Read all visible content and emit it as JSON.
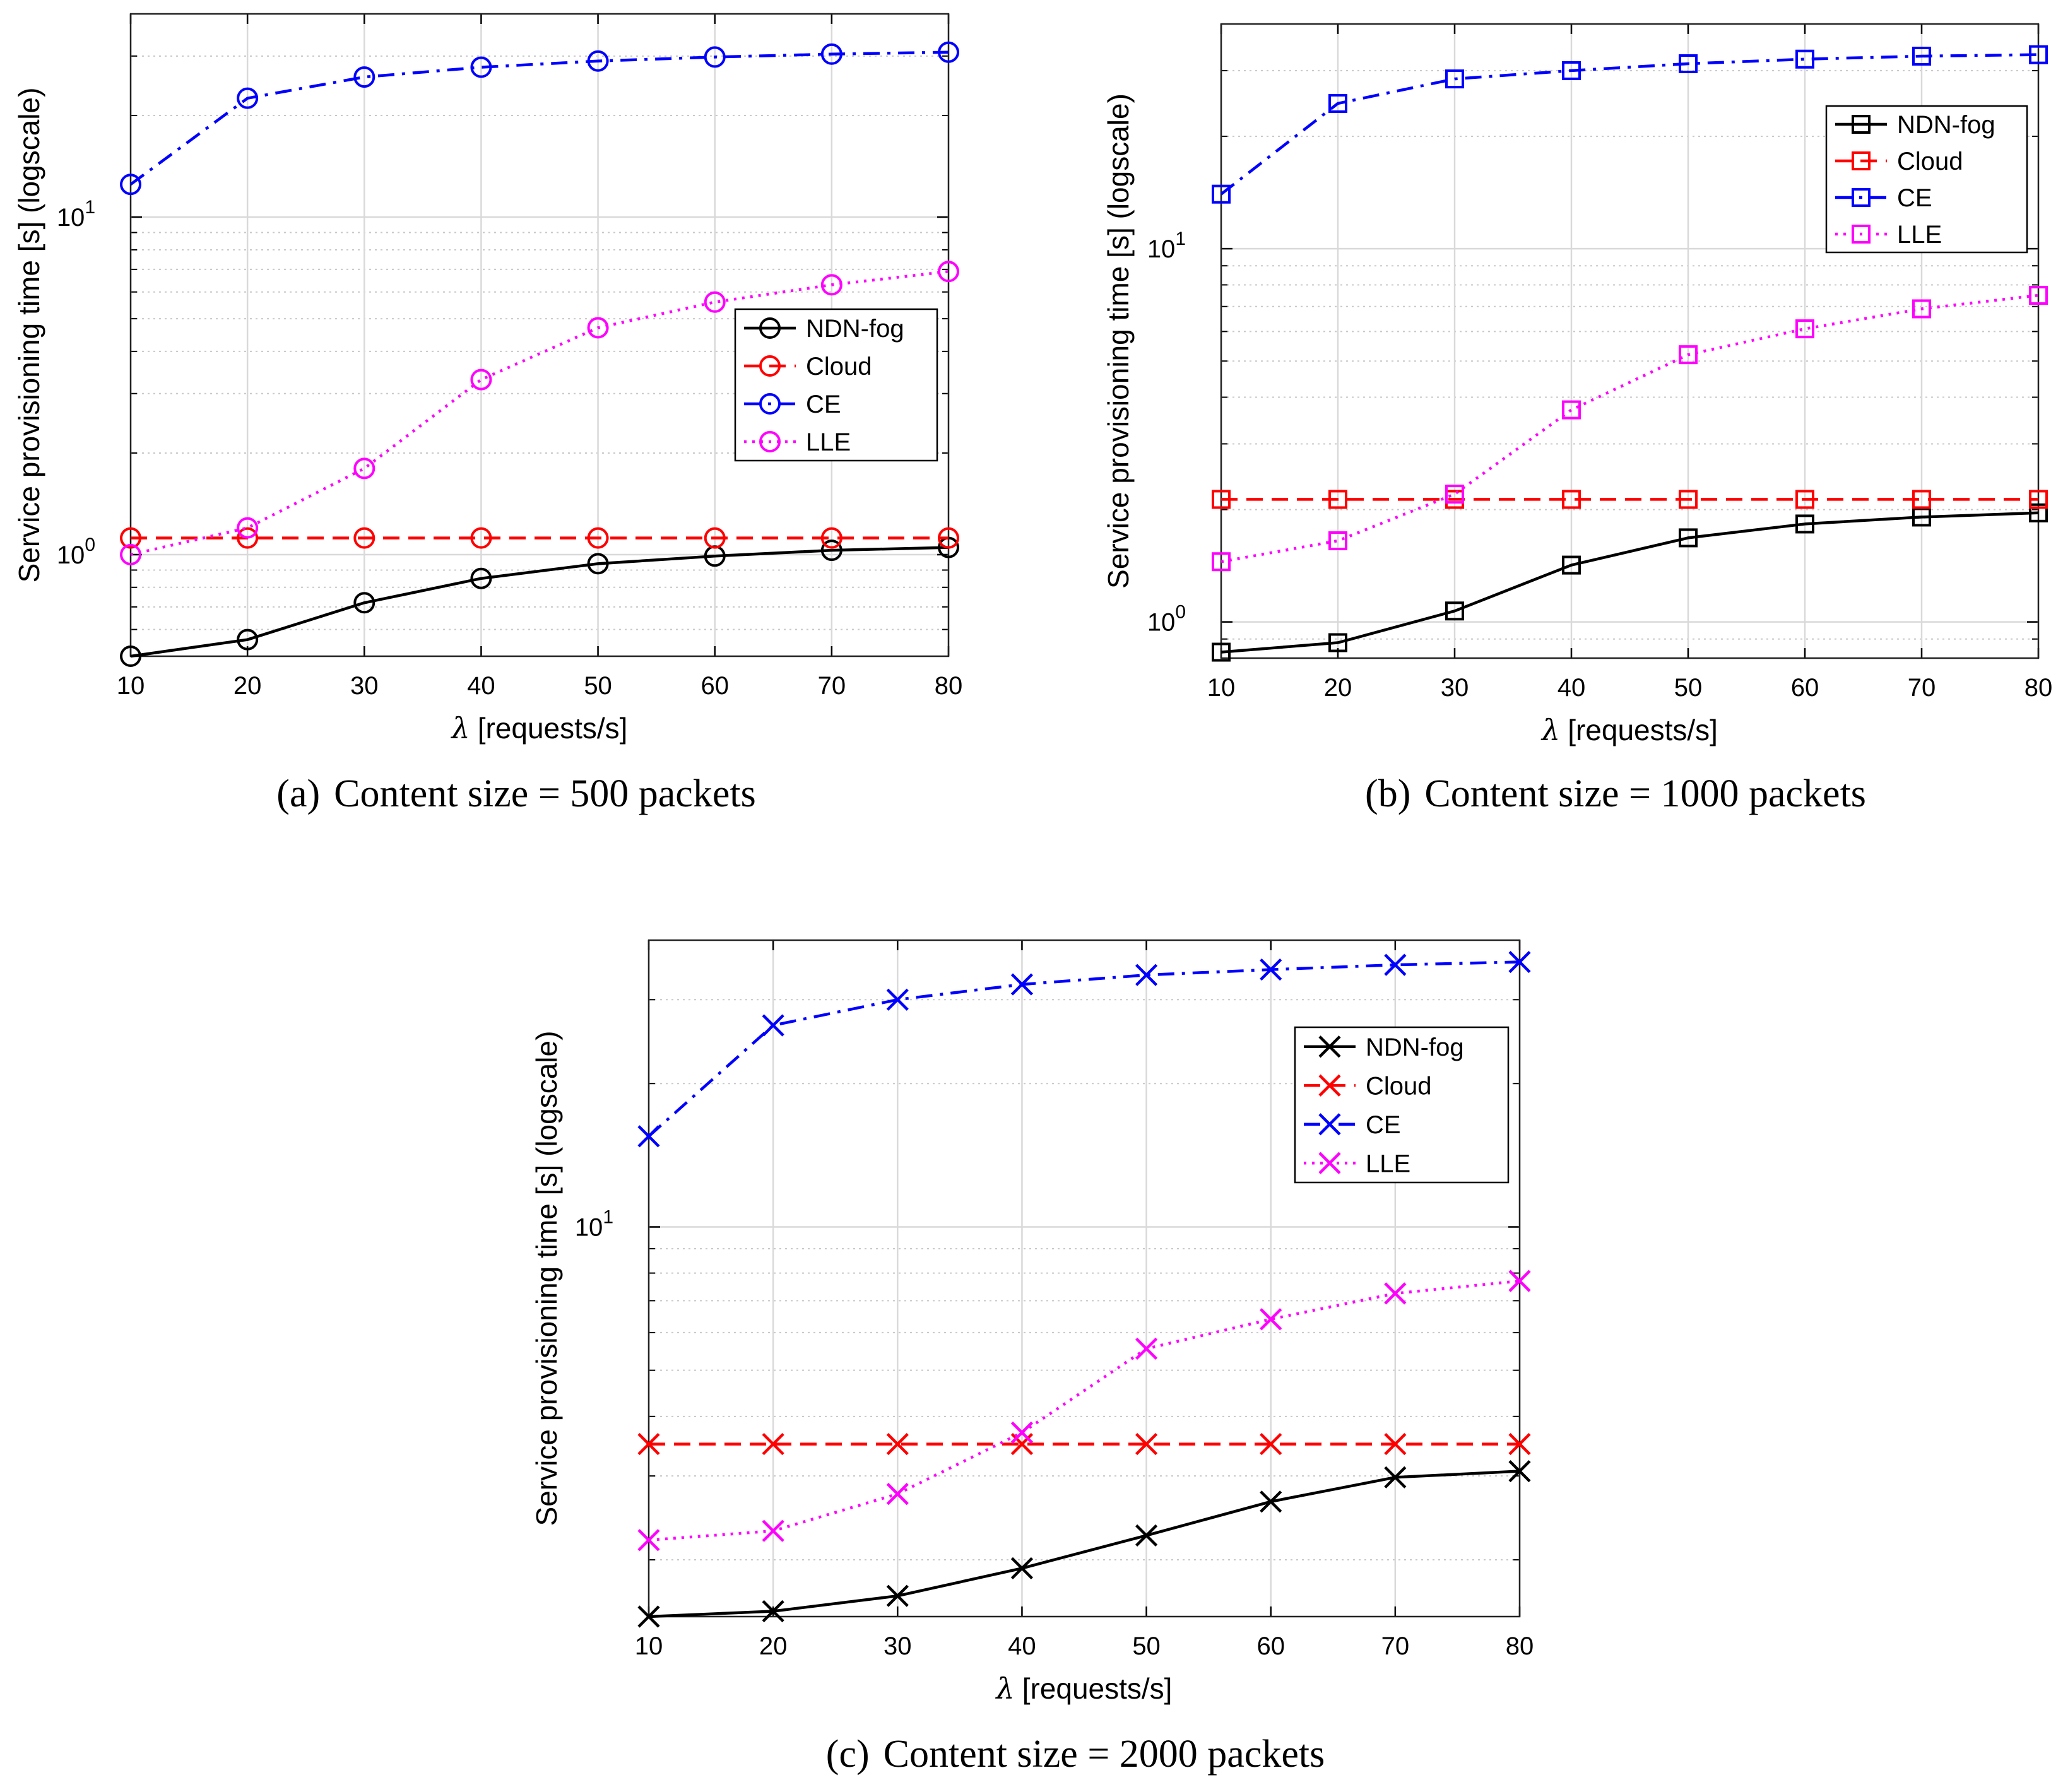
{
  "chart_data": [
    {
      "type": "line",
      "subplot_label": "(a)",
      "caption": "Content size = 500 packets",
      "xlabel_sym": "λ",
      "xlabel": "[requests/s]",
      "ylabel": "Service provisioning time [s] (logscale)",
      "yscale": "log",
      "marker": "circle",
      "xlim": [
        10,
        80
      ],
      "ylim": [
        0.5,
        40
      ],
      "x_ticks": [
        10,
        20,
        30,
        40,
        50,
        60,
        70,
        80
      ],
      "x_tick_labels": [
        "10",
        "20",
        "30",
        "40",
        "50",
        "60",
        "70",
        "80"
      ],
      "y_ticks": [
        1,
        10
      ],
      "y_tick_base": "10",
      "y_tick_exps": [
        "0",
        "1"
      ],
      "grid": true,
      "legend_position": "right-middle",
      "x": [
        10,
        20,
        30,
        40,
        50,
        60,
        70,
        80
      ],
      "series": [
        {
          "name": "NDN-fog",
          "color": "#000000",
          "dash": "solid",
          "values": [
            0.5,
            0.56,
            0.72,
            0.85,
            0.94,
            0.99,
            1.03,
            1.05
          ]
        },
        {
          "name": "Cloud",
          "color": "#ff0000",
          "dash": "dashed",
          "values": [
            1.12,
            1.12,
            1.12,
            1.12,
            1.12,
            1.12,
            1.12,
            1.12
          ]
        },
        {
          "name": "CE",
          "color": "#0000ff",
          "dash": "dashdot",
          "values": [
            12.5,
            22.5,
            26.0,
            27.8,
            29.0,
            29.8,
            30.4,
            30.8
          ]
        },
        {
          "name": "LLE",
          "color": "#ff00ff",
          "dash": "dotted",
          "values": [
            1.0,
            1.2,
            1.8,
            3.3,
            4.7,
            5.6,
            6.3,
            6.9
          ]
        }
      ]
    },
    {
      "type": "line",
      "subplot_label": "(b)",
      "caption": "Content size = 1000 packets",
      "xlabel_sym": "λ",
      "xlabel": "[requests/s]",
      "ylabel": "Service provisioning time [s] (logscale)",
      "yscale": "log",
      "marker": "square",
      "xlim": [
        10,
        80
      ],
      "ylim": [
        0.8,
        40
      ],
      "x_ticks": [
        10,
        20,
        30,
        40,
        50,
        60,
        70,
        80
      ],
      "x_tick_labels": [
        "10",
        "20",
        "30",
        "40",
        "50",
        "60",
        "70",
        "80"
      ],
      "y_ticks": [
        1,
        10
      ],
      "y_tick_base": "10",
      "y_tick_exps": [
        "0",
        "1"
      ],
      "grid": true,
      "legend_position": "top-right",
      "x": [
        10,
        20,
        30,
        40,
        50,
        60,
        70,
        80
      ],
      "series": [
        {
          "name": "NDN-fog",
          "color": "#000000",
          "dash": "solid",
          "values": [
            0.83,
            0.88,
            1.07,
            1.42,
            1.68,
            1.83,
            1.91,
            1.96
          ]
        },
        {
          "name": "Cloud",
          "color": "#ff0000",
          "dash": "dashed",
          "values": [
            2.13,
            2.13,
            2.13,
            2.13,
            2.13,
            2.13,
            2.13,
            2.13
          ]
        },
        {
          "name": "CE",
          "color": "#0000ff",
          "dash": "dashdot",
          "values": [
            14.0,
            24.5,
            28.5,
            30.0,
            31.3,
            32.2,
            32.8,
            33.1
          ]
        },
        {
          "name": "LLE",
          "color": "#ff00ff",
          "dash": "dotted",
          "values": [
            1.45,
            1.65,
            2.2,
            3.7,
            5.2,
            6.1,
            6.9,
            7.5
          ]
        }
      ]
    },
    {
      "type": "line",
      "subplot_label": "(c)",
      "caption": "Content size = 2000 packets",
      "xlabel_sym": "λ",
      "xlabel": "[requests/s]",
      "ylabel": "Service provisioning time [s] (logscale)",
      "yscale": "log",
      "marker": "x",
      "xlim": [
        10,
        80
      ],
      "ylim": [
        1.52,
        40
      ],
      "x_ticks": [
        10,
        20,
        30,
        40,
        50,
        60,
        70,
        80
      ],
      "x_tick_labels": [
        "10",
        "20",
        "30",
        "40",
        "50",
        "60",
        "70",
        "80"
      ],
      "y_ticks": [
        10
      ],
      "y_tick_base": "10",
      "y_tick_exps": [
        "1"
      ],
      "grid": true,
      "legend_position": "top-right",
      "x": [
        10,
        20,
        30,
        40,
        50,
        60,
        70,
        80
      ],
      "series": [
        {
          "name": "NDN-fog",
          "color": "#000000",
          "dash": "solid",
          "values": [
            1.52,
            1.56,
            1.68,
            1.92,
            2.25,
            2.65,
            2.98,
            3.07
          ]
        },
        {
          "name": "Cloud",
          "color": "#ff0000",
          "dash": "dashed",
          "values": [
            3.5,
            3.5,
            3.5,
            3.5,
            3.5,
            3.5,
            3.5,
            3.5
          ]
        },
        {
          "name": "CE",
          "color": "#0000ff",
          "dash": "dashdot",
          "values": [
            15.5,
            26.5,
            30.0,
            32.3,
            33.8,
            34.7,
            35.5,
            36.0
          ]
        },
        {
          "name": "LLE",
          "color": "#ff00ff",
          "dash": "dotted",
          "values": [
            2.2,
            2.3,
            2.75,
            3.7,
            5.55,
            6.4,
            7.25,
            7.7
          ]
        }
      ]
    }
  ]
}
